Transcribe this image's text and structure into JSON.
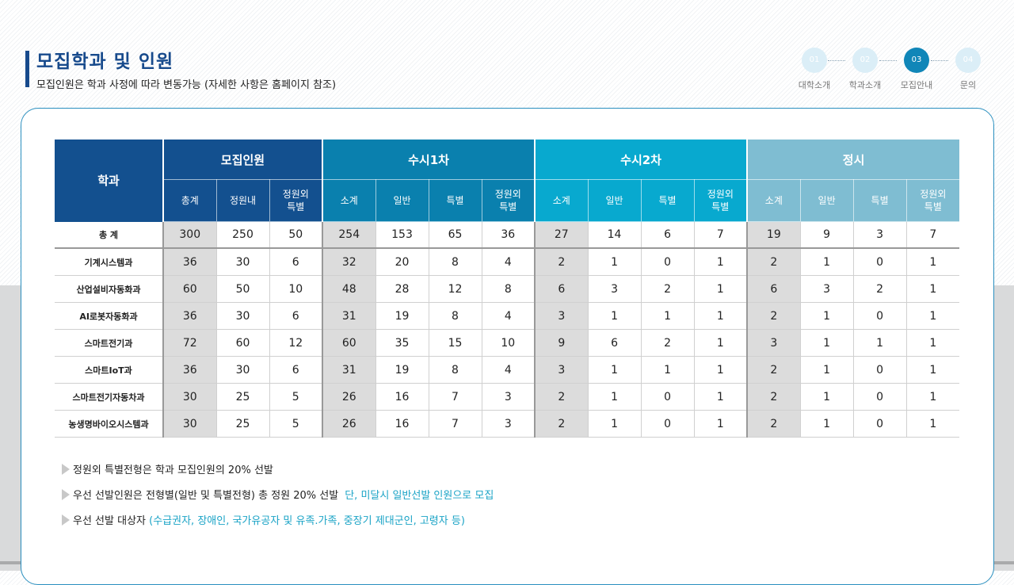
{
  "header": {
    "title": "모집학과 및 인원",
    "subtitle": "모집인원은 학과 사정에 따라 변동가능 (자세한 사항은 홈페이지 참조)"
  },
  "steps": [
    {
      "num": "01",
      "label": "대학소개",
      "active": false
    },
    {
      "num": "02",
      "label": "학과소개",
      "active": false
    },
    {
      "num": "03",
      "label": "모집안내",
      "active": true
    },
    {
      "num": "04",
      "label": "문의",
      "active": false
    }
  ],
  "table": {
    "corner": "학과",
    "groups": [
      "모집인원",
      "수시1차",
      "수시2차",
      "정시"
    ],
    "group_sub": [
      [
        "총계",
        "정원내",
        "정원외\n특별"
      ],
      [
        "소계",
        "일반",
        "특별",
        "정원외\n특별"
      ],
      [
        "소계",
        "일반",
        "특별",
        "정원외\n특별"
      ],
      [
        "소계",
        "일반",
        "특별",
        "정원외\n특별"
      ]
    ],
    "rows": [
      {
        "dept": "총 계",
        "v": [
          300,
          250,
          50,
          254,
          153,
          65,
          36,
          27,
          14,
          6,
          7,
          19,
          9,
          3,
          7
        ]
      },
      {
        "dept": "기계시스템과",
        "v": [
          36,
          30,
          6,
          32,
          20,
          8,
          4,
          2,
          1,
          0,
          1,
          2,
          1,
          0,
          1
        ]
      },
      {
        "dept": "산업설비자동화과",
        "v": [
          60,
          50,
          10,
          48,
          28,
          12,
          8,
          6,
          3,
          2,
          1,
          6,
          3,
          2,
          1
        ]
      },
      {
        "dept": "AI로봇자동화과",
        "v": [
          36,
          30,
          6,
          31,
          19,
          8,
          4,
          3,
          1,
          1,
          1,
          2,
          1,
          0,
          1
        ]
      },
      {
        "dept": "스마트전기과",
        "v": [
          72,
          60,
          12,
          60,
          35,
          15,
          10,
          9,
          6,
          2,
          1,
          3,
          1,
          1,
          1
        ]
      },
      {
        "dept": "스마트IoT과",
        "v": [
          36,
          30,
          6,
          31,
          19,
          8,
          4,
          3,
          1,
          1,
          1,
          2,
          1,
          0,
          1
        ]
      },
      {
        "dept": "스마트전기자동차과",
        "v": [
          30,
          25,
          5,
          26,
          16,
          7,
          3,
          2,
          1,
          0,
          1,
          2,
          1,
          0,
          1
        ]
      },
      {
        "dept": "농생명바이오시스템과",
        "v": [
          30,
          25,
          5,
          26,
          16,
          7,
          3,
          2,
          1,
          0,
          1,
          2,
          1,
          0,
          1
        ]
      }
    ]
  },
  "notes": [
    {
      "text": "정원외 특별전형은 학과 모집인원의 20% 선발",
      "highlight": ""
    },
    {
      "text": "우선 선발인원은 전형별(일반 및 특별전형) 총 정원 20% 선발",
      "highlight": "단, 미달시 일반선발 인원으로 모집"
    },
    {
      "text": "우선 선발 대상자",
      "highlight": "(수급권자, 장애인, 국가유공자 및 유족.가족, 중장기 제대군인, 고령자 등)"
    }
  ],
  "colors": {
    "primary": "#174a8c",
    "active_step": "#1086b8",
    "highlight": "#1aa3c6"
  }
}
